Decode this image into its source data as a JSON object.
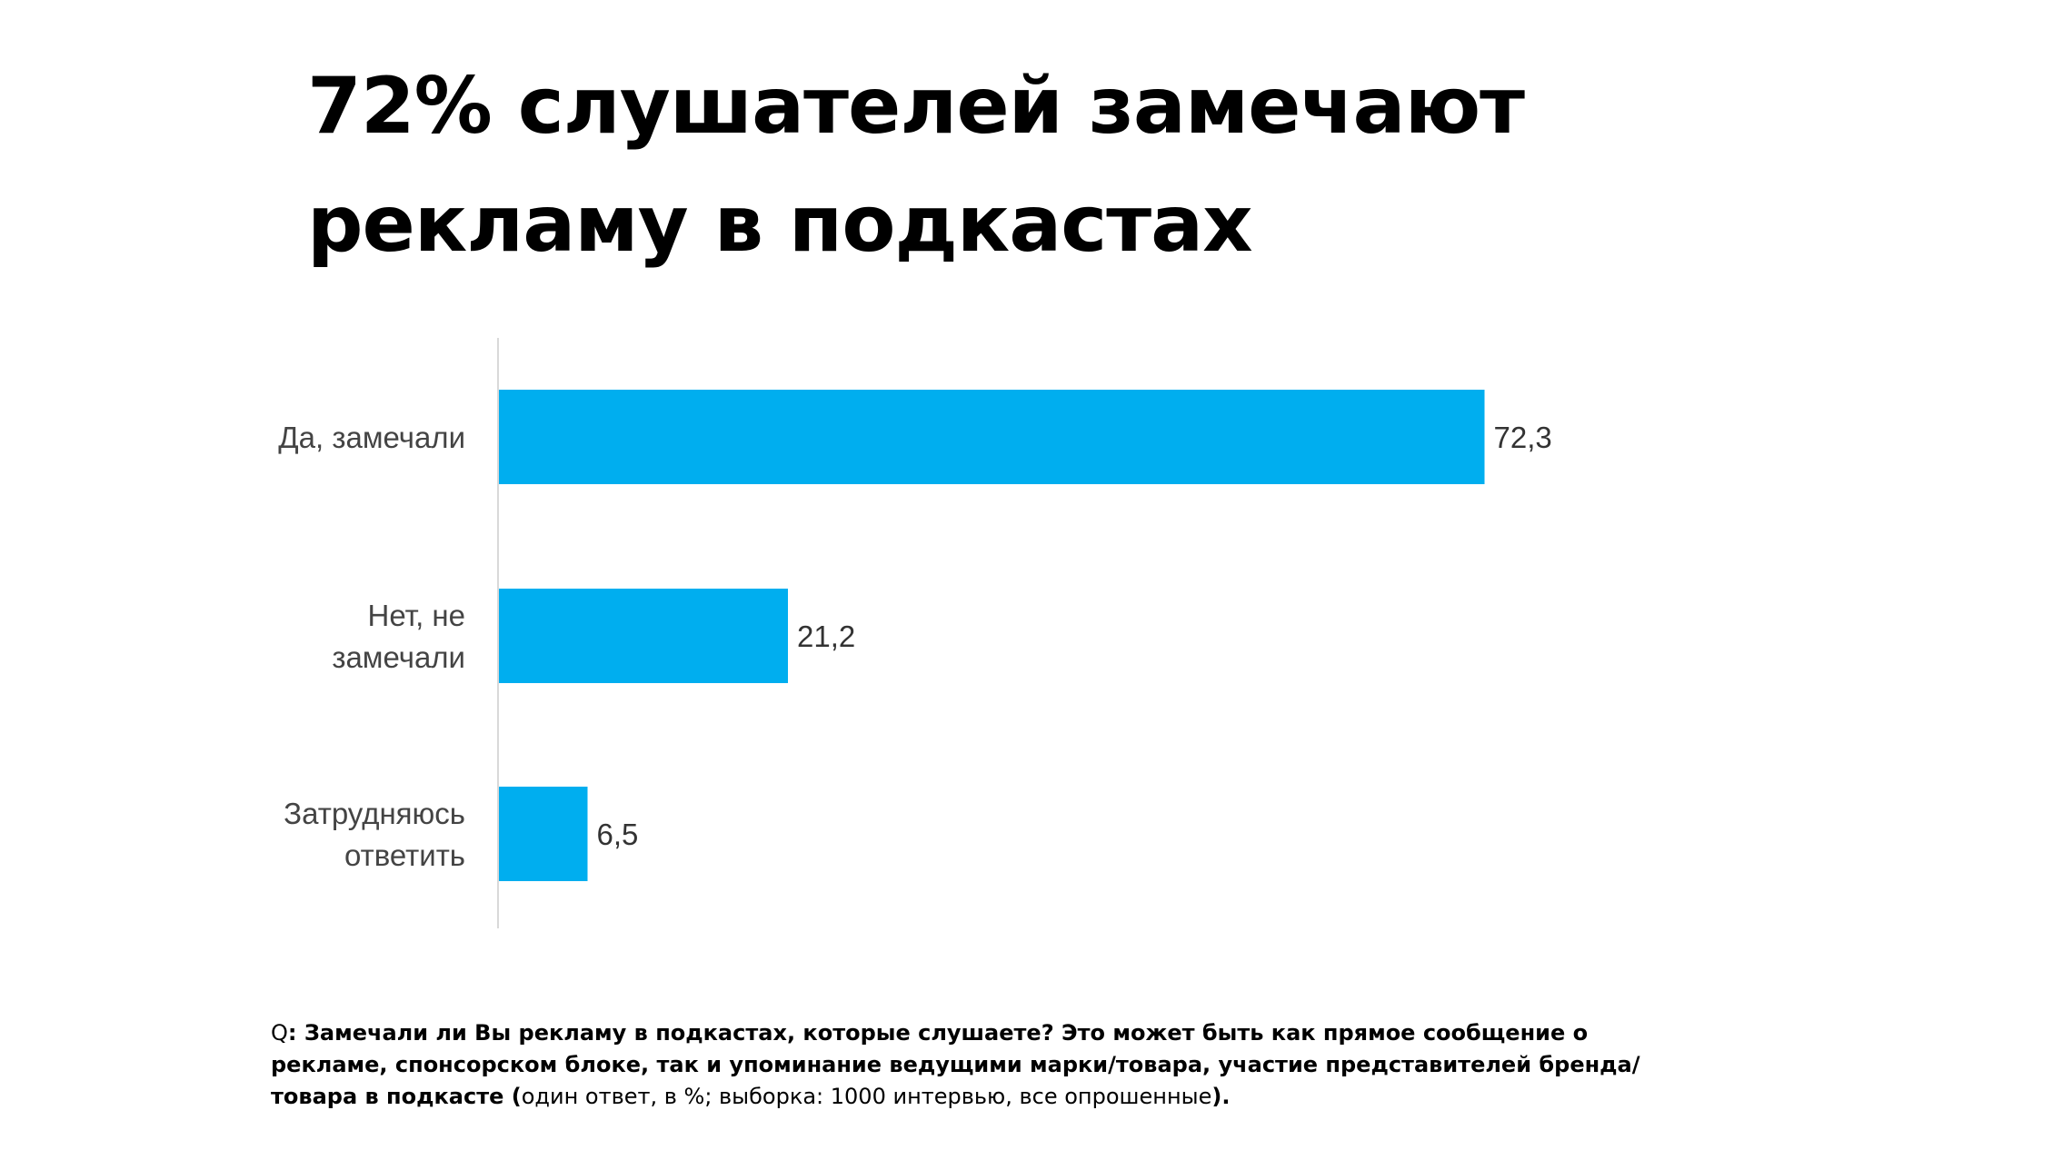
{
  "title": {
    "line1": "72% слушателей замечают",
    "line2": "рекламу в подкастах"
  },
  "chart_data": {
    "type": "bar",
    "orientation": "horizontal",
    "categories": [
      [
        "Да, замечали"
      ],
      [
        "Нет, не",
        "замечали"
      ],
      [
        "Затрудняюсь",
        "ответить"
      ]
    ],
    "values": [
      72.3,
      21.2,
      6.5
    ],
    "value_labels": [
      "72,3",
      "21,2",
      "6,5"
    ],
    "xlim": [
      0,
      100
    ],
    "bar_color": "#00AEEF",
    "axis_color": "#D9D9D9",
    "grid": false,
    "legend": "none"
  },
  "footnote": {
    "prefix": "Q",
    "question": ": Замечали ли Вы рекламу в подкастах, которые слушаете? Это может быть как прямое сообщение о рекламе, спонсорском блоке, так и упоминание ведущими марки/товара, участие представителей бренда/товара в подкасте ",
    "open_paren": "(",
    "meta": "один ответ, в %; выборка: 1000 интервью, все опрошенные",
    "close": ")."
  }
}
